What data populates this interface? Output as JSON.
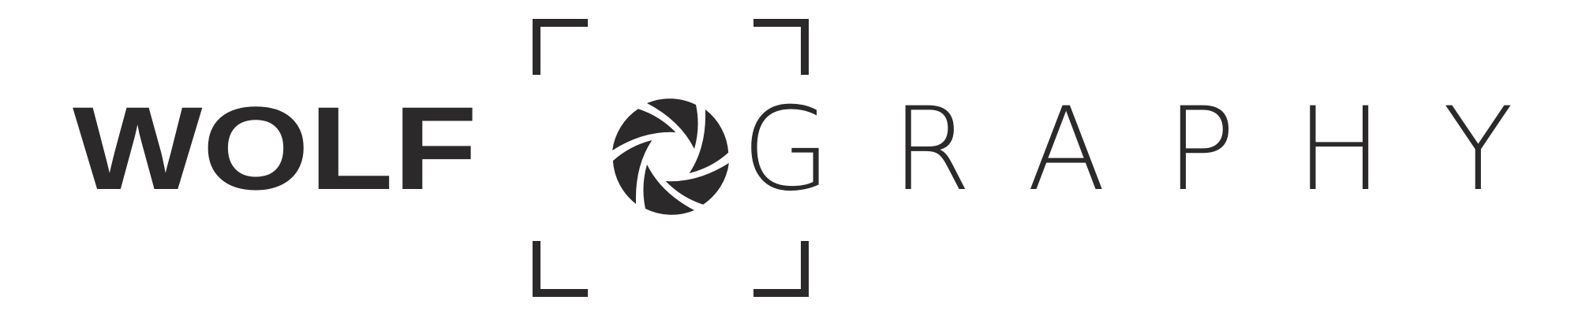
{
  "logo": {
    "bold_text": "WOLF",
    "light_text": "GRAPHY"
  }
}
